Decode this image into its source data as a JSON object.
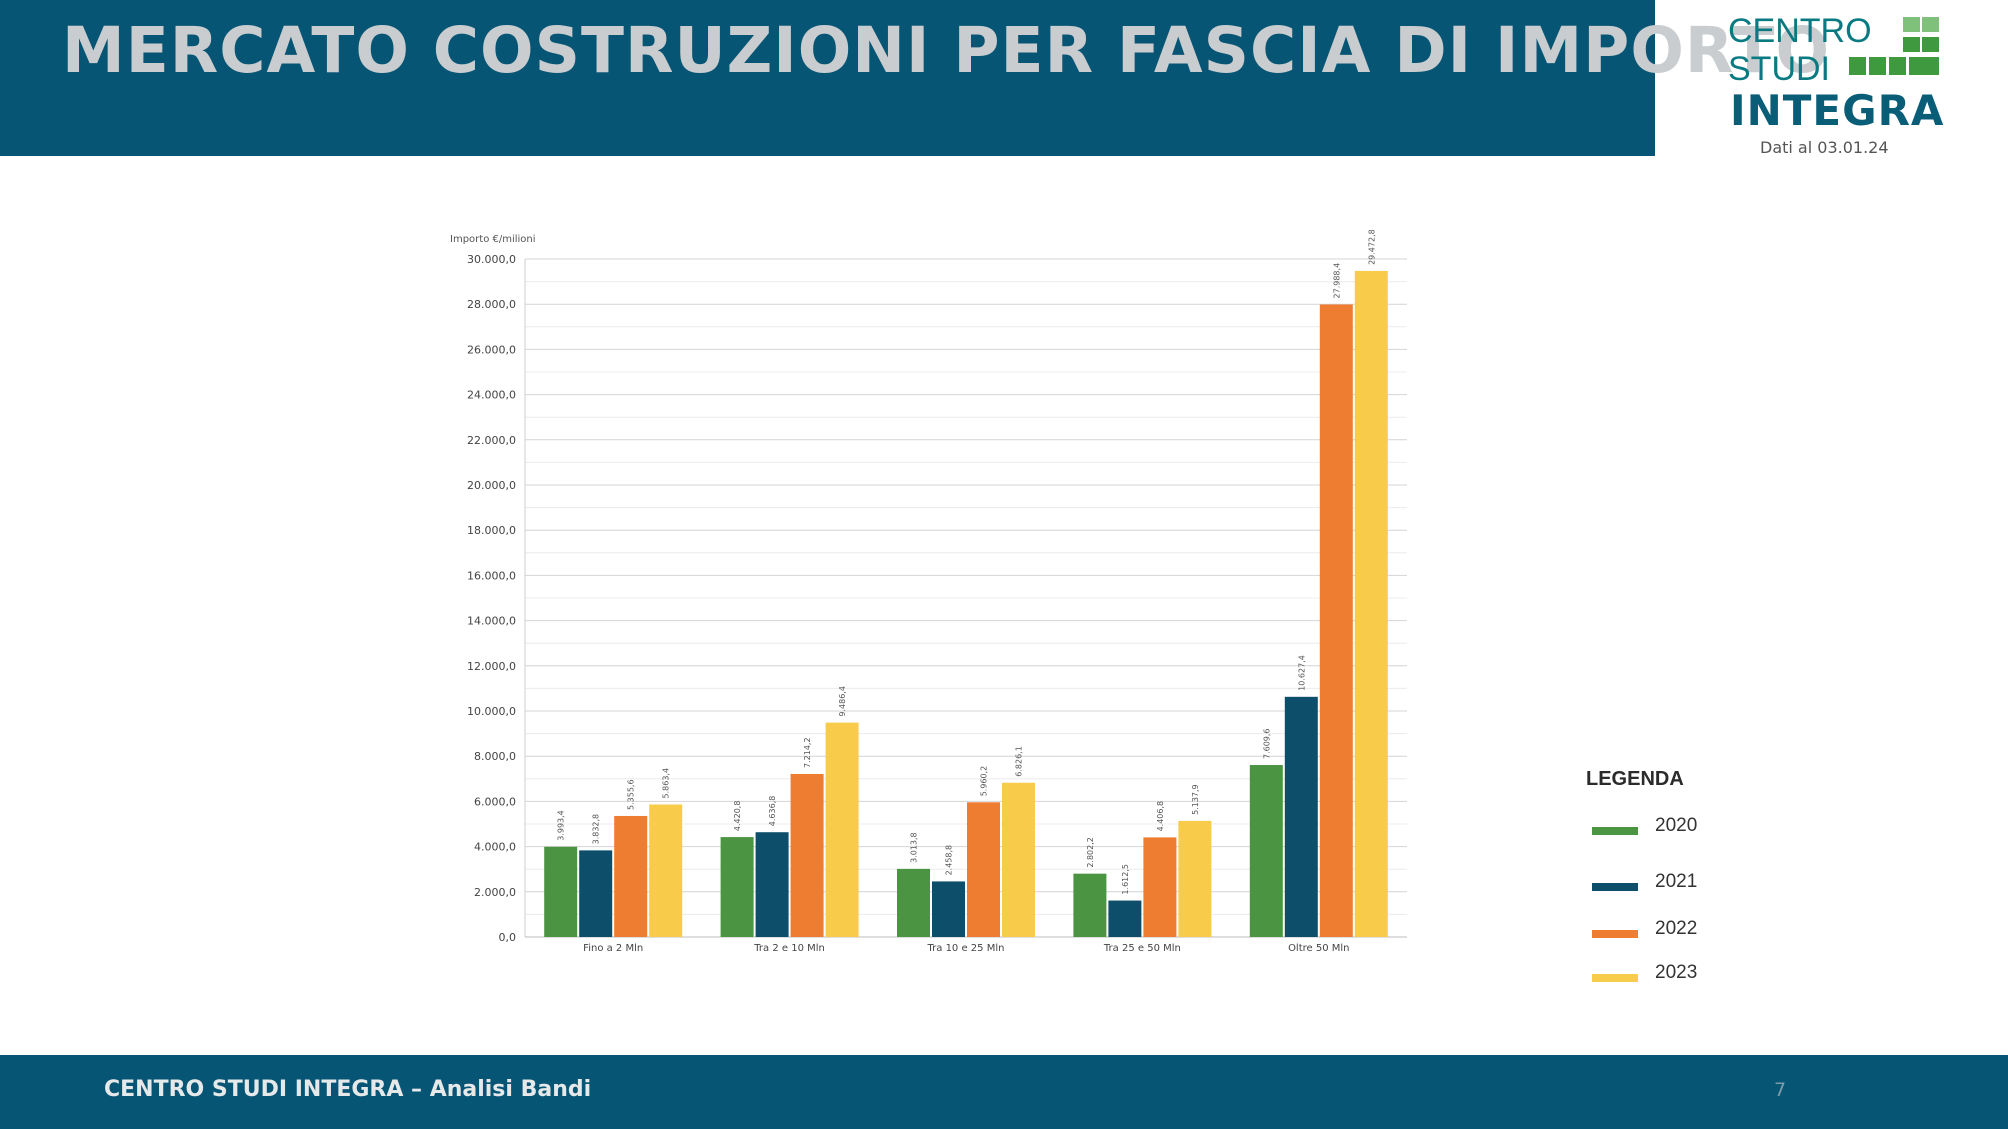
{
  "header": {
    "title": "MERCATO COSTRUZIONI PER FASCIA DI IMPORTO"
  },
  "logo": {
    "line1": "CENTRO",
    "line2": "STUDI",
    "line3": "INTEGRA",
    "date": "Dati al 03.01.24"
  },
  "footer": {
    "text": "CENTRO STUDI INTEGRA – Analisi Bandi",
    "page": "7"
  },
  "legend": {
    "title": "LEGENDA",
    "items": [
      {
        "label": "2020",
        "color": "#4b9441"
      },
      {
        "label": "2021",
        "color": "#0d4f6b"
      },
      {
        "label": "2022",
        "color": "#ee7d32"
      },
      {
        "label": "2023",
        "color": "#f8cc4a"
      }
    ]
  },
  "chart_data": {
    "type": "bar",
    "title": "",
    "ylabel": "Importo €/milioni",
    "xlabel": "",
    "ylim": [
      0,
      30000
    ],
    "yticks": [
      "0,0",
      "2.000,0",
      "4.000,0",
      "6.000,0",
      "8.000,0",
      "10.000,0",
      "12.000,0",
      "14.000,0",
      "16.000,0",
      "18.000,0",
      "20.000,0",
      "22.000,0",
      "24.000,0",
      "26.000,0",
      "28.000,0",
      "30.000,0"
    ],
    "grid": true,
    "legend_position": "right",
    "categories": [
      "Fino a 2 Mln",
      "Tra 2 e 10 Mln",
      "Tra 10 e 25 Mln",
      "Tra 25 e 50 Mln",
      "Oltre 50 Mln"
    ],
    "series": [
      {
        "name": "2020",
        "color": "#4b9441",
        "values": [
          3993.4,
          4420.8,
          3013.8,
          2802.2,
          7609.6
        ],
        "labels": [
          "3.993,4",
          "4.420,8",
          "3.013,8",
          "2.802,2",
          "7.609,6"
        ]
      },
      {
        "name": "2021",
        "color": "#0d4f6b",
        "values": [
          3832.8,
          4636.8,
          2458.8,
          1612.5,
          10627.4
        ],
        "labels": [
          "3.832,8",
          "4.636,8",
          "2.458,8",
          "1.612,5",
          "10.627,4"
        ]
      },
      {
        "name": "2022",
        "color": "#ee7d32",
        "values": [
          5355.6,
          7214.2,
          5960.2,
          4406.8,
          27988.4
        ],
        "labels": [
          "5.355,6",
          "7.214,2",
          "5.960,2",
          "4.406,8",
          "27.988,4"
        ]
      },
      {
        "name": "2023",
        "color": "#f8cc4a",
        "values": [
          5863.4,
          9486.4,
          6826.1,
          5137.9,
          29472.8
        ],
        "labels": [
          "5.863,4",
          "9.486,4",
          "6.826,1",
          "5.137,9",
          "29.472,8"
        ]
      }
    ]
  }
}
